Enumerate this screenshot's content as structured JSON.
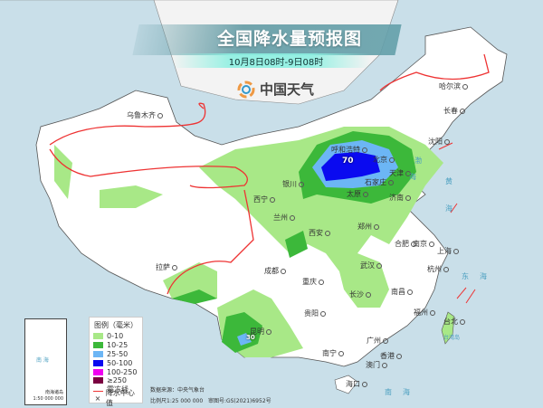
{
  "header": {
    "title": "全国降水量预报图",
    "subtitle": "10月8日08时-9日08时",
    "logo_text": "中国天气"
  },
  "cities": [
    "乌鲁木齐",
    "哈尔滨",
    "长春",
    "沈阳",
    "呼和浩特",
    "北京",
    "天津",
    "石家庄",
    "太原",
    "济南",
    "银川",
    "西宁",
    "兰州",
    "西安",
    "郑州",
    "合肥",
    "南京",
    "上海",
    "杭州",
    "武汉",
    "成都",
    "重庆",
    "长沙",
    "南昌",
    "福州",
    "台北",
    "贵阳",
    "昆明",
    "南宁",
    "广州",
    "香港",
    "澳门",
    "海口",
    "拉萨"
  ],
  "seas": [
    "渤",
    "海",
    "黄",
    "海",
    "东",
    "海",
    "南",
    "海",
    "台湾岛"
  ],
  "max_values": [
    "70",
    "30"
  ],
  "inset": {
    "title": "南海诸岛",
    "scale": "1:50 000 000",
    "sea_label": "南 海"
  },
  "legend": {
    "title": "图例（毫米）",
    "items": [
      {
        "label": "0-10",
        "color": "#a8e887"
      },
      {
        "label": "10-25",
        "color": "#3cb83a"
      },
      {
        "label": "25-50",
        "color": "#6cb6f5"
      },
      {
        "label": "50-100",
        "color": "#0a0af0"
      },
      {
        "label": "100-250",
        "color": "#f000f0"
      },
      {
        "label": "≥250",
        "color": "#7a0040"
      }
    ],
    "frost_line": "霜冻线",
    "center_value": "降水中心值"
  },
  "footer": {
    "source": "数据来源：中央气象台",
    "scale": "比例尺1:25 000 000",
    "approval": "审图号:GS(2021)6952号"
  }
}
